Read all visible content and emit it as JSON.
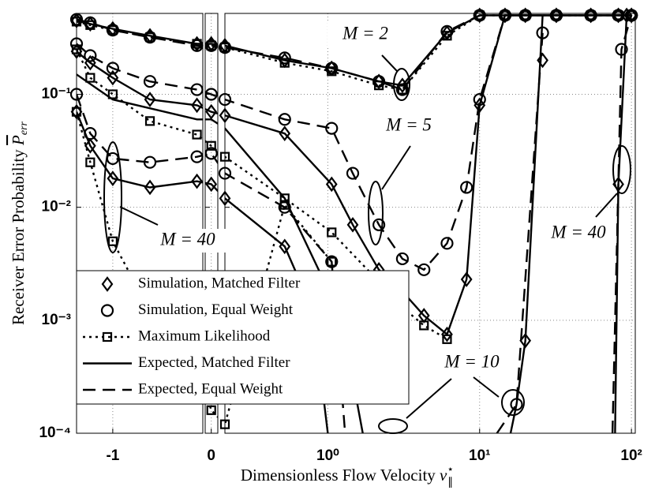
{
  "chart_data": {
    "type": "line",
    "x_label": "Dimensionless Flow Velocity",
    "x_label_symbol": "v",
    "x_label_superscript": "⋆",
    "x_label_subscript": "∥",
    "y_label": "Receiver Error Probability",
    "y_label_symbol": "P",
    "y_label_subscript": "err",
    "y_scale": "log",
    "ylim": [
      0.0001,
      0.52
    ],
    "yticks": [
      {
        "value": 0.0001,
        "label": "10⁻⁴"
      },
      {
        "value": 0.001,
        "label": "10⁻³"
      },
      {
        "value": 0.01,
        "label": "10⁻²"
      },
      {
        "value": 0.1,
        "label": "10⁻¹"
      }
    ],
    "x_panels": [
      {
        "xlim": [
          -1.37,
          -0.08
        ],
        "scale": "linear"
      },
      {
        "xlim": [
          -0.065,
          0.07
        ],
        "scale": "linear"
      },
      {
        "xlim": [
          0.21,
          106
        ],
        "scale": "log"
      }
    ],
    "xticks": [
      -1,
      0,
      {
        "value": 1,
        "label": "10⁰"
      },
      {
        "value": 10,
        "label": "10¹"
      },
      {
        "value": 100,
        "label": "10²"
      }
    ],
    "grid": true,
    "legend_position": "lower left",
    "annotations": [
      "M = 2",
      "M = 5",
      "M = 40",
      "M = 10",
      "M = 40"
    ],
    "series": [
      {
        "name": "Simulation, Matched Filter",
        "color": "#000000",
        "marker": "diamond",
        "line": "none",
        "curves": [
          {
            "x": [
              -1.37,
              -1.23,
              -1,
              -0.62,
              -0.14,
              0,
              0.21,
              0.52,
              1.06,
              2.17,
              3.1,
              6.1,
              10,
              14.7,
              20,
              32,
              54,
              82,
              100
            ],
            "values": [
              0.45,
              0.42,
              0.38,
              0.33,
              0.28,
              0.28,
              0.27,
              0.2,
              0.17,
              0.13,
              0.12,
              0.35,
              0.5,
              0.5,
              0.5,
              0.5,
              0.5,
              0.5,
              0.5
            ]
          },
          {
            "x": [
              -1.37,
              -1.23,
              -1,
              -0.62,
              -0.14,
              0,
              0.21,
              0.52,
              1.06,
              1.46,
              2.17,
              3.1,
              4.3,
              6.1,
              8.2,
              10,
              14.7,
              20,
              32,
              54,
              82,
              100
            ],
            "values": [
              0.24,
              0.19,
              0.14,
              0.09,
              0.08,
              0.07,
              0.065,
              0.045,
              0.016,
              0.007,
              0.0028,
              0.0018,
              0.0011,
              0.00075,
              0.0023,
              0.08,
              0.5,
              0.5,
              0.5,
              0.5,
              0.5,
              0.5
            ]
          },
          {
            "x": [
              -1.37,
              -1.23,
              -1,
              -0.62,
              -0.14,
              0,
              0.21,
              0.52
            ],
            "values": [
              0.07,
              0.035,
              0.018,
              0.015,
              0.017,
              0.016,
              0.012,
              0.0045
            ]
          },
          {
            "x": [
              20,
              26,
              32
            ],
            "values": [
              0.00066,
              0.2,
              0.5
            ]
          },
          {
            "x": [
              82,
              93,
              100
            ],
            "values": [
              0.016,
              0.5,
              0.5
            ]
          }
        ]
      },
      {
        "name": "Simulation, Equal Weight",
        "color": "#000000",
        "marker": "circle",
        "line": "none",
        "curves": [
          {
            "x": [
              -1.37,
              -1.23,
              -1,
              -0.62,
              -0.14,
              0,
              0.21,
              0.52,
              1.06,
              2.17,
              3.1,
              6.1,
              10,
              14.7,
              20,
              32,
              54,
              82,
              100
            ],
            "values": [
              0.46,
              0.43,
              0.37,
              0.32,
              0.27,
              0.27,
              0.26,
              0.21,
              0.17,
              0.13,
              0.11,
              0.36,
              0.5,
              0.5,
              0.5,
              0.5,
              0.5,
              0.5,
              0.5
            ]
          },
          {
            "x": [
              -1.37,
              -1.23,
              -1,
              -0.62,
              -0.14,
              0,
              0.21,
              0.52,
              1.06,
              1.46,
              2.17,
              3.1,
              4.3,
              6.1,
              8.2,
              10,
              14.7,
              20,
              32,
              54,
              82,
              100
            ],
            "values": [
              0.28,
              0.22,
              0.17,
              0.13,
              0.11,
              0.1,
              0.09,
              0.06,
              0.05,
              0.02,
              0.007,
              0.0035,
              0.0028,
              0.0048,
              0.015,
              0.09,
              0.5,
              0.5,
              0.5,
              0.5,
              0.5,
              0.5
            ]
          },
          {
            "x": [
              -1.37,
              -1.23,
              -1,
              -0.62,
              -0.14,
              0,
              0.21,
              0.52,
              1.06
            ],
            "values": [
              0.1,
              0.045,
              0.027,
              0.025,
              0.028,
              0.03,
              0.02,
              0.01,
              0.0033
            ]
          },
          {
            "x": [
              17.5,
              26
            ],
            "values": [
              0.00018,
              0.35
            ]
          },
          {
            "x": [
              86,
              100
            ],
            "values": [
              0.25,
              0.5
            ]
          }
        ]
      },
      {
        "name": "Maximum Likelihood",
        "color": "#000000",
        "marker": "square",
        "line": "dotted",
        "curves": [
          {
            "x": [
              -1.37,
              -1.23,
              -1,
              -0.62,
              -0.14,
              0,
              0.21,
              0.52,
              1.06,
              2.17,
              3.1,
              6.1,
              10,
              14.7,
              20,
              32,
              54,
              82,
              100
            ],
            "values": [
              0.44,
              0.41,
              0.37,
              0.32,
              0.28,
              0.27,
              0.26,
              0.19,
              0.16,
              0.12,
              0.11,
              0.33,
              0.5,
              0.5,
              0.5,
              0.5,
              0.5,
              0.5,
              0.5
            ]
          },
          {
            "x": [
              -1.37,
              -1.23,
              -1,
              -0.62,
              -0.14,
              0,
              0.21,
              0.52,
              1.06,
              2.17,
              3.1,
              4.3,
              6.1
            ],
            "values": [
              0.25,
              0.14,
              0.1,
              0.058,
              0.044,
              0.035,
              0.028,
              0.012,
              0.006,
              0.0022,
              0.0013,
              0.0009,
              0.00068
            ]
          },
          {
            "x": [
              -1.37,
              -1.23,
              -1,
              -0.62,
              -0.14,
              0,
              0.21,
              0.52,
              1.06
            ],
            "values": [
              0.07,
              0.025,
              0.005,
              0.0012,
              0.0004,
              0.00016,
              0.00012,
              0.0105,
              0.0033
            ]
          }
        ]
      },
      {
        "name": "Expected, Matched Filter",
        "color": "#000000",
        "marker": null,
        "line": "solid",
        "curves": [
          {
            "x": [
              -1.37,
              -1.23,
              -1,
              -0.62,
              -0.14,
              0,
              0.21,
              0.52,
              1.06,
              2.17,
              3.1,
              6.1,
              10,
              14.7,
              20,
              32,
              54,
              82,
              100
            ],
            "values": [
              0.45,
              0.42,
              0.38,
              0.33,
              0.28,
              0.28,
              0.27,
              0.2,
              0.17,
              0.13,
              0.12,
              0.35,
              0.5,
              0.5,
              0.5,
              0.5,
              0.5,
              0.5,
              0.5
            ]
          },
          {
            "x": [
              -1.37,
              -1.23,
              -1,
              -0.62,
              -0.14,
              0,
              0.21,
              0.52,
              1.06,
              1.46,
              2.17,
              3.1,
              4.3,
              6.1,
              8.2,
              10,
              14.7,
              20,
              32,
              54,
              82,
              100
            ],
            "values": [
              0.24,
              0.19,
              0.14,
              0.09,
              0.08,
              0.07,
              0.065,
              0.045,
              0.016,
              0.007,
              0.0028,
              0.0018,
              0.0011,
              0.00075,
              0.0023,
              0.08,
              0.5,
              0.5,
              0.5,
              0.5,
              0.5,
              0.5
            ]
          },
          {
            "x": [
              -1.37,
              -1,
              -0.14,
              0,
              0.21,
              0.52,
              1.06,
              1.46,
              1.7
            ],
            "values": [
              0.15,
              0.09,
              0.06,
              0.06,
              0.05,
              0.012,
              0.0016,
              0.0003,
              0.0001
            ]
          },
          {
            "x": [
              16,
              17.5,
              20,
              26
            ],
            "values": [
              0.0001,
              0.00018,
              0.00066,
              0.5
            ]
          },
          {
            "x": [
              -1.37,
              -1.23,
              -1,
              -0.62,
              -0.14,
              0,
              0.21,
              0.52,
              0.8,
              1.0
            ],
            "values": [
              0.07,
              0.035,
              0.018,
              0.015,
              0.017,
              0.016,
              0.012,
              0.0045,
              0.0012,
              0.0001
            ]
          },
          {
            "x": [
              78,
              82,
              93
            ],
            "values": [
              0.0001,
              0.016,
              0.5
            ]
          }
        ]
      },
      {
        "name": "Expected, Equal Weight",
        "color": "#000000",
        "marker": null,
        "line": "dashed",
        "curves": [
          {
            "x": [
              -1.37,
              -1.23,
              -1,
              -0.62,
              -0.14,
              0,
              0.21,
              0.52,
              1.06,
              2.17,
              3.1,
              6.1,
              10,
              14.7,
              20,
              32,
              54,
              82,
              100
            ],
            "values": [
              0.46,
              0.43,
              0.37,
              0.32,
              0.27,
              0.27,
              0.26,
              0.21,
              0.17,
              0.13,
              0.11,
              0.36,
              0.5,
              0.5,
              0.5,
              0.5,
              0.5,
              0.5,
              0.5
            ]
          },
          {
            "x": [
              -1.37,
              -1.23,
              -1,
              -0.62,
              -0.14,
              0,
              0.21,
              0.52,
              1.06,
              1.46,
              2.17,
              3.1,
              4.3,
              6.1,
              8.2,
              10,
              14.7,
              20,
              32,
              54,
              82,
              100
            ],
            "values": [
              0.28,
              0.22,
              0.17,
              0.13,
              0.11,
              0.1,
              0.09,
              0.06,
              0.05,
              0.02,
              0.007,
              0.0035,
              0.0028,
              0.0048,
              0.015,
              0.09,
              0.5,
              0.5,
              0.5,
              0.5,
              0.5,
              0.5
            ]
          },
          {
            "x": [
              -1.37,
              -1.23,
              -1,
              -0.62,
              -0.14,
              0,
              0.21,
              0.52,
              1.06,
              1.3
            ],
            "values": [
              0.1,
              0.045,
              0.027,
              0.025,
              0.028,
              0.03,
              0.02,
              0.01,
              0.0033,
              0.0001
            ]
          },
          {
            "x": [
              13,
              17.5,
              26
            ],
            "values": [
              0.0001,
              0.00018,
              0.35
            ]
          },
          {
            "x": [
              75,
              86,
              100
            ],
            "values": [
              0.0001,
              0.25,
              0.5
            ]
          }
        ]
      }
    ]
  }
}
